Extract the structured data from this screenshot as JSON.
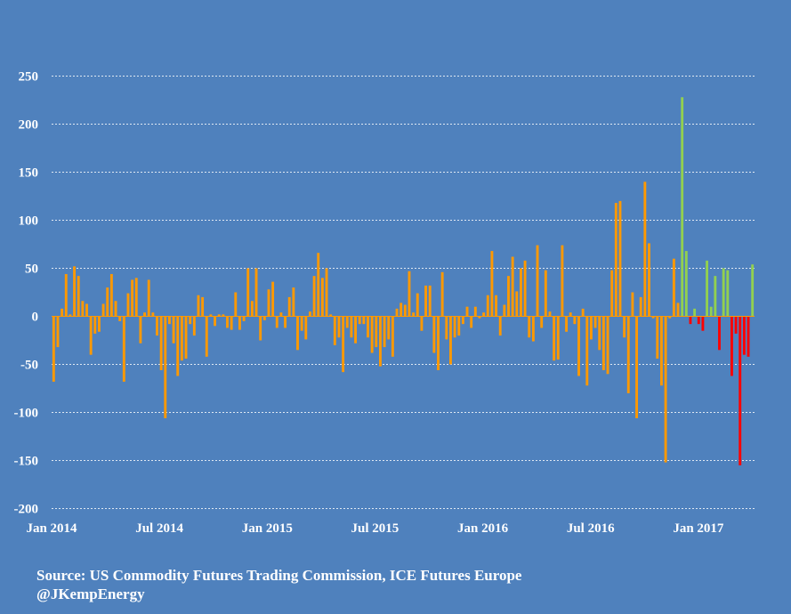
{
  "footer": {
    "source": "Source: US Commodity Futures Trading Commission, ICE Futures Europe",
    "handle": "@JKempEnergy"
  },
  "colors": {
    "background": "#4f81bd",
    "bar_default": "#ff9900",
    "bar_positive_late": "#92d050",
    "bar_negative_late": "#ff0000",
    "grid": "#dfe8f3",
    "text": "#ffffff"
  },
  "chart_data": {
    "type": "bar",
    "title": "",
    "xlabel": "",
    "ylabel": "",
    "ylim": [
      -200,
      250
    ],
    "y_ticks": [
      "250",
      "200",
      "150",
      "100",
      "50",
      "0",
      "-50",
      "-100",
      "-150",
      "-200"
    ],
    "x_ticks": [
      "Jan 2014",
      "Jul 2014",
      "Jan 2015",
      "Jul 2015",
      "Jan 2016",
      "Jul 2016",
      "Jan 2017"
    ],
    "grid": true,
    "legend": "none",
    "period": "weekly",
    "start": "Jan 2014",
    "series": [
      {
        "values": [
          -68,
          -32,
          8,
          44,
          2,
          52,
          42,
          16,
          13,
          -40,
          -18,
          -16,
          13,
          30,
          44,
          16,
          -5,
          -68,
          24,
          38,
          40,
          -28,
          4,
          38,
          4,
          -20,
          -56,
          -106,
          -8,
          -28,
          -62,
          -46,
          -44,
          -8,
          -20,
          22,
          20,
          -42,
          2,
          -10,
          2,
          2,
          -12,
          -14,
          25,
          -14,
          -5,
          50,
          16,
          50,
          -25,
          -4,
          28,
          36,
          -12,
          4,
          -12,
          20,
          30,
          -35,
          -15,
          -24,
          5,
          42,
          66,
          40,
          50,
          2,
          -30,
          -22,
          -58,
          -12,
          -22,
          -28,
          -8,
          -8,
          -22,
          -38,
          -32,
          -52,
          -32,
          -24,
          -42,
          8,
          14,
          12,
          47,
          4,
          24,
          -15,
          32,
          32,
          -38,
          -56,
          46,
          -24,
          -50,
          -22,
          -20,
          -8,
          10,
          -12,
          10,
          -2,
          4,
          22,
          68,
          22,
          -20,
          12,
          42,
          62,
          26,
          50,
          58,
          -22,
          -26,
          74,
          -12,
          48,
          5,
          -46,
          -45,
          74,
          -16,
          4,
          -8,
          -62,
          8,
          -72,
          -24,
          -12,
          -35,
          -56,
          -60,
          48,
          118,
          120,
          -22,
          -80,
          25,
          -106,
          20,
          140,
          76,
          -2,
          -44,
          -72,
          -152,
          -2,
          60,
          14,
          228,
          68,
          -8,
          8,
          -8,
          -15,
          58,
          10,
          42,
          -35,
          50,
          48,
          -62,
          -18,
          -155,
          -40,
          -42,
          54
        ]
      }
    ],
    "color_rule": "bars from Dec 2016 onward: positive green, negative red; earlier bars orange"
  }
}
